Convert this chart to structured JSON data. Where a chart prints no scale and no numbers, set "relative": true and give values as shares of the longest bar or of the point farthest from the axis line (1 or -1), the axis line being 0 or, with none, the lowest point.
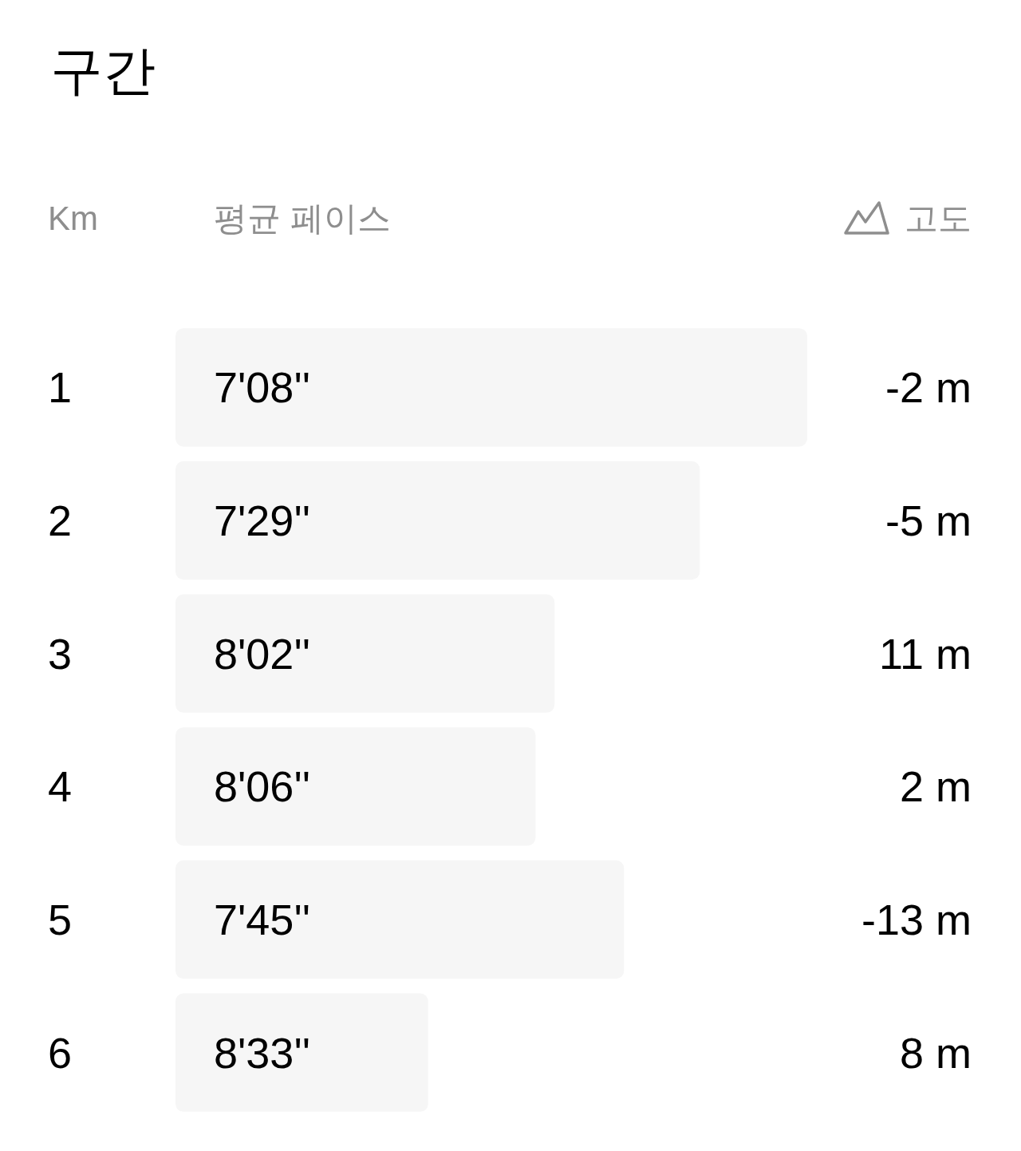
{
  "chart_data": [
    {
      "type": "bar",
      "orientation": "horizontal",
      "relative": true,
      "title": "구간",
      "ylabel": "Km",
      "xlabel": "평균 페이스",
      "categories": [
        "1",
        "2",
        "3",
        "4",
        "5",
        "6"
      ],
      "values": [
        1,
        0.83,
        0.6,
        0.57,
        0.71,
        0.4
      ],
      "color": "#f6f6f6",
      "annotations": [
        "7'08''",
        "7'29''",
        "8'02''",
        "8'06''",
        "7'45''",
        "8'33''"
      ]
    },
    {
      "type": "other",
      "title": "고도",
      "annotations": [
        "-2 m",
        "-5 m",
        "11 m",
        "2 m",
        "-13 m",
        "8 m"
      ]
    }
  ]
}
